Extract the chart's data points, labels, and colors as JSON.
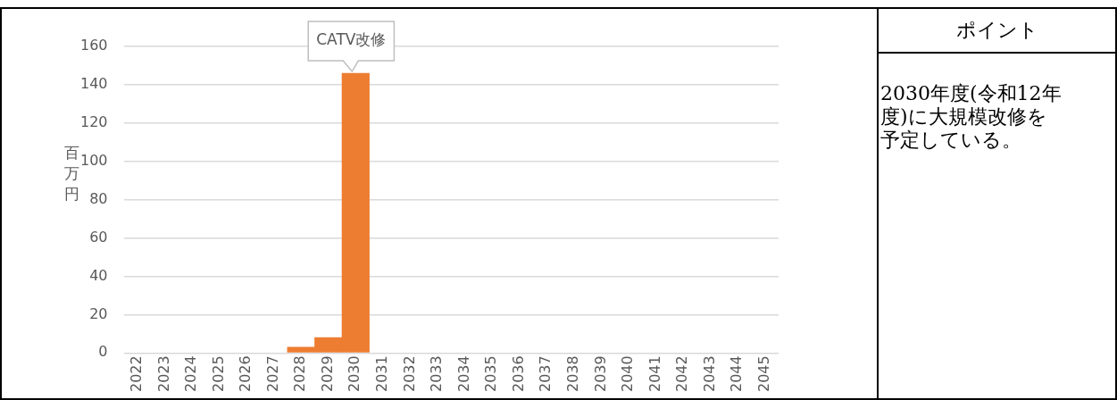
{
  "chart_data": [
    {
      "type": "bar",
      "ylabel": "百万円",
      "categories": [
        "2022",
        "2023",
        "2024",
        "2025",
        "2026",
        "2027",
        "2028",
        "2029",
        "2030",
        "2031",
        "2032",
        "2033",
        "2034",
        "2035",
        "2036",
        "2037",
        "2038",
        "2039",
        "2040",
        "2041",
        "2042",
        "2043",
        "2044",
        "2045"
      ],
      "values": [
        null,
        null,
        null,
        null,
        null,
        null,
        3,
        8,
        146,
        null,
        null,
        null,
        null,
        null,
        null,
        null,
        null,
        null,
        null,
        null,
        null,
        null,
        null,
        null
      ],
      "color": "#ed7d31",
      "ylim": [
        0,
        160
      ],
      "yticks": [
        0,
        20,
        40,
        60,
        80,
        100,
        120,
        140,
        160
      ],
      "grid": "y",
      "legend": false,
      "annotations": [
        {
          "text": "CATV改修",
          "x": "2030",
          "y": 146
        }
      ]
    },
    {
      "type": "other",
      "title": "ポイント",
      "annotations": [
        "2030年度(令和12年度)に大規模改修を予定している。"
      ]
    }
  ]
}
